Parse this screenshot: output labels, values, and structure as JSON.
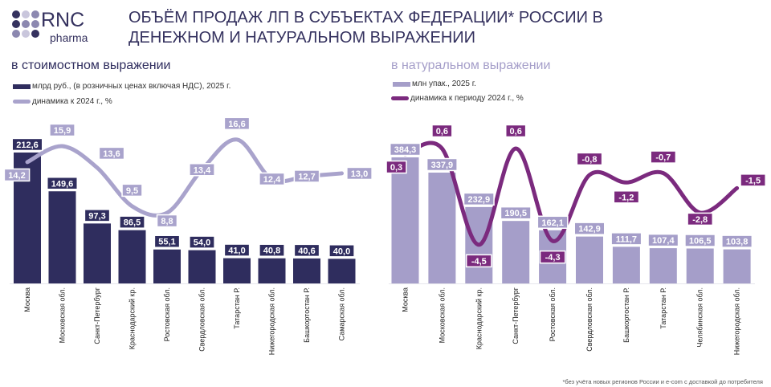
{
  "header": {
    "logo_text": "RNC",
    "logo_subtext": "pharma",
    "title_line1": "ОБЪЁМ ПРОДАЖ ЛП В СУБЪЕКТАХ ФЕДЕРАЦИИ* РОССИИ В",
    "title_line2": "ДЕНЕЖНОМ И НАТУРАЛЬНОМ ВЫРАЖЕНИИ"
  },
  "footnote": "*без учёта новых регионов России и e-com с доставкой до потребителя",
  "colors": {
    "dark_bar": "#2f2d5e",
    "light_line": "#a9a3cc",
    "light_bar": "#a59ec9",
    "purple_line": "#7b2a7e",
    "title": "#35325f"
  },
  "chart_data": [
    {
      "type": "bar+line",
      "subtitle": "в стоимостном выражении",
      "categories": [
        "Москва",
        "Московская обл.",
        "Санкт-Петербург",
        "Краснодарский кр.",
        "Ростовская обл.",
        "Свердловская обл.",
        "Татарстан Р.",
        "Нижегородская обл.",
        "Башкортостан Р.",
        "Самарская обл."
      ],
      "series": [
        {
          "name": "млрд руб., (в розничных ценах включая НДС), 2025 г.",
          "type": "bar",
          "values": [
            "212,6",
            "149,6",
            "97,3",
            "86,5",
            "55,1",
            "54,0",
            "41,0",
            "40,8",
            "40,6",
            "40,0"
          ]
        },
        {
          "name": "динамика к 2024 г., %",
          "type": "line",
          "values": [
            "14,2",
            "15,9",
            "13,6",
            "9,5",
            "8,8",
            "13,4",
            "16,6",
            "12,4",
            "12,7",
            "13,0"
          ]
        }
      ],
      "grid": false
    },
    {
      "type": "bar+line",
      "subtitle": "в натуральном выражении",
      "categories": [
        "Москва",
        "Московская обл.",
        "Краснодарский кр.",
        "Санкт-Петербург",
        "Ростовская обл.",
        "Свердловская обл.",
        "Башкортостан Р.",
        "Татарстан Р.",
        "Челябинская обл.",
        "Нижегородская обл."
      ],
      "series": [
        {
          "name": "млн упак., 2025 г.",
          "type": "bar",
          "values": [
            "384,3",
            "337,9",
            "232,9",
            "190,5",
            "162,1",
            "142,9",
            "111,7",
            "107,4",
            "106,5",
            "103,8"
          ]
        },
        {
          "name": "динамика к периоду 2024 г., %",
          "type": "line",
          "values": [
            "0,3",
            "0,6",
            "-4,5",
            "0,6",
            "-4,3",
            "-0,8",
            "-1,2",
            "-0,7",
            "-2,8",
            "-1,5"
          ]
        }
      ],
      "grid": false
    }
  ]
}
